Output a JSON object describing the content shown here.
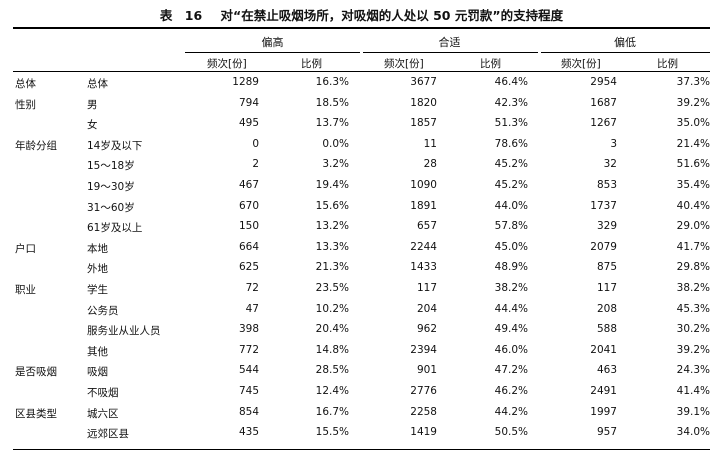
{
  "table": {
    "label": "表",
    "number": "16",
    "caption": "对“在禁止吸烟场所，对吸烟的人处以 50 元罚款”的支持程度",
    "groups": [
      "偏高",
      "合适",
      "偏低"
    ],
    "sub_headers": [
      "频次[份]",
      "比例"
    ],
    "rows": [
      {
        "category": "总体",
        "item": "总体",
        "values": [
          "1289",
          "16.3%",
          "3677",
          "46.4%",
          "2954",
          "37.3%"
        ]
      },
      {
        "category": "性别",
        "item": "男",
        "values": [
          "794",
          "18.5%",
          "1820",
          "42.3%",
          "1687",
          "39.2%"
        ]
      },
      {
        "category": "",
        "item": "女",
        "values": [
          "495",
          "13.7%",
          "1857",
          "51.3%",
          "1267",
          "35.0%"
        ]
      },
      {
        "category": "年龄分组",
        "item": "14岁及以下",
        "values": [
          "0",
          "0.0%",
          "11",
          "78.6%",
          "3",
          "21.4%"
        ]
      },
      {
        "category": "",
        "item": "15～18岁",
        "values": [
          "2",
          "3.2%",
          "28",
          "45.2%",
          "32",
          "51.6%"
        ]
      },
      {
        "category": "",
        "item": "19～30岁",
        "values": [
          "467",
          "19.4%",
          "1090",
          "45.2%",
          "853",
          "35.4%"
        ]
      },
      {
        "category": "",
        "item": "31～60岁",
        "values": [
          "670",
          "15.6%",
          "1891",
          "44.0%",
          "1737",
          "40.4%"
        ]
      },
      {
        "category": "",
        "item": "61岁及以上",
        "values": [
          "150",
          "13.2%",
          "657",
          "57.8%",
          "329",
          "29.0%"
        ]
      },
      {
        "category": "户口",
        "item": "本地",
        "values": [
          "664",
          "13.3%",
          "2244",
          "45.0%",
          "2079",
          "41.7%"
        ]
      },
      {
        "category": "",
        "item": "外地",
        "values": [
          "625",
          "21.3%",
          "1433",
          "48.9%",
          "875",
          "29.8%"
        ]
      },
      {
        "category": "职业",
        "item": "学生",
        "values": [
          "72",
          "23.5%",
          "117",
          "38.2%",
          "117",
          "38.2%"
        ]
      },
      {
        "category": "",
        "item": "公务员",
        "values": [
          "47",
          "10.2%",
          "204",
          "44.4%",
          "208",
          "45.3%"
        ]
      },
      {
        "category": "",
        "item": "服务业从业人员",
        "values": [
          "398",
          "20.4%",
          "962",
          "49.4%",
          "588",
          "30.2%"
        ]
      },
      {
        "category": "",
        "item": "其他",
        "values": [
          "772",
          "14.8%",
          "2394",
          "46.0%",
          "2041",
          "39.2%"
        ]
      },
      {
        "category": "是否吸烟",
        "item": "吸烟",
        "values": [
          "544",
          "28.5%",
          "901",
          "47.2%",
          "463",
          "24.3%"
        ]
      },
      {
        "category": "",
        "item": "不吸烟",
        "values": [
          "745",
          "12.4%",
          "2776",
          "46.2%",
          "2491",
          "41.4%"
        ]
      },
      {
        "category": "区县类型",
        "item": "城六区",
        "values": [
          "854",
          "16.7%",
          "2258",
          "44.2%",
          "1997",
          "39.1%"
        ]
      },
      {
        "category": "",
        "item": "远郊区县",
        "values": [
          "435",
          "15.5%",
          "1419",
          "50.5%",
          "957",
          "34.0%"
        ]
      }
    ]
  }
}
